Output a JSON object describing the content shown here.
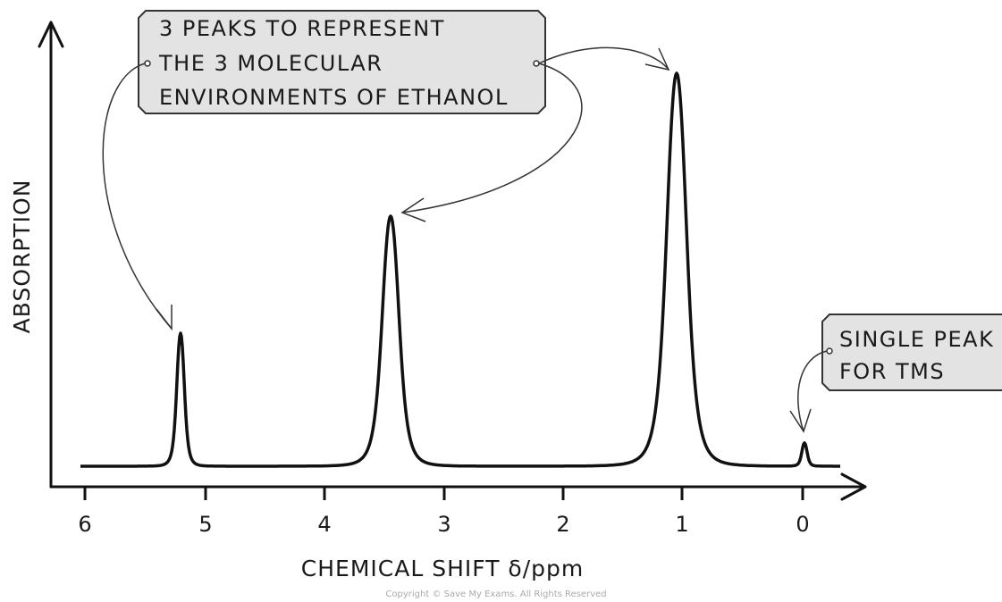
{
  "diagram": {
    "y_axis_label": "ABSORPTION",
    "x_axis_label": "CHEMICAL SHIFT δ/ppm",
    "x_tick_labels": [
      "6",
      "5",
      "4",
      "3",
      "2",
      "1",
      "0"
    ],
    "annotations": [
      {
        "lines": [
          "3 PEAKS TO REPRESENT",
          "THE 3 MOLECULAR",
          "ENVIRONMENTS OF ETHANOL"
        ]
      },
      {
        "lines": [
          "SINGLE PEAK",
          "FOR TMS"
        ]
      }
    ],
    "copyright": "Copyright © Save My Exams. All Rights Reserved"
  }
}
